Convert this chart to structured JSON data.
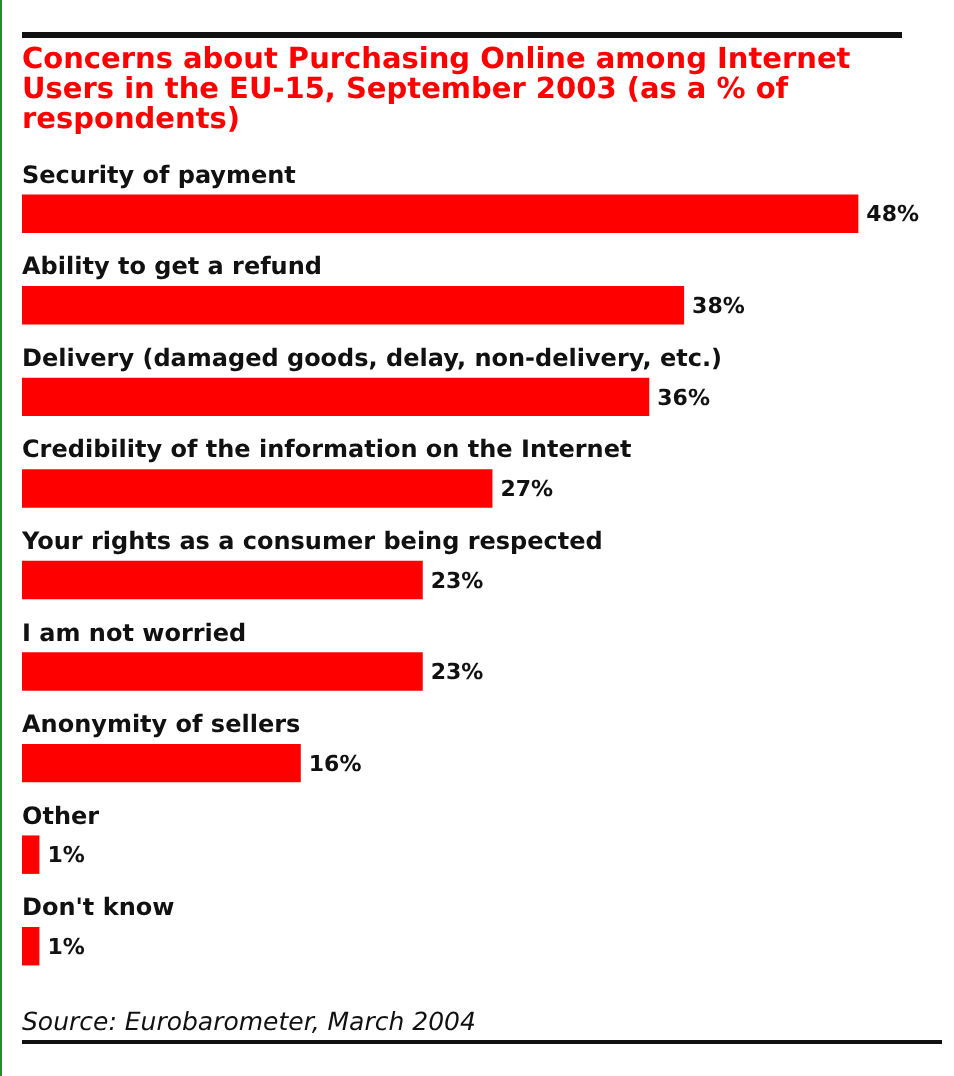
{
  "chart_data": {
    "type": "bar",
    "orientation": "horizontal",
    "title": "Concerns about Purchasing Online among Internet Users in the EU-15, September 2003 (as a % of respondents)",
    "categories": [
      "Security of payment",
      "Ability to get a refund",
      "Delivery (damaged goods, delay, non-delivery, etc.)",
      "Credibility of the information on the Internet",
      "Your rights as a consumer being respected",
      "I am not worried",
      "Anonymity of sellers",
      "Other",
      "Don't know"
    ],
    "values": [
      48,
      38,
      36,
      27,
      23,
      23,
      16,
      1,
      1
    ],
    "value_labels": [
      "48%",
      "38%",
      "36%",
      "27%",
      "23%",
      "23%",
      "16%",
      "1%",
      "1%"
    ],
    "color": "#ff0000",
    "legend": false,
    "annotations": [
      "Source: Eurobarometer, March 2004"
    ]
  }
}
